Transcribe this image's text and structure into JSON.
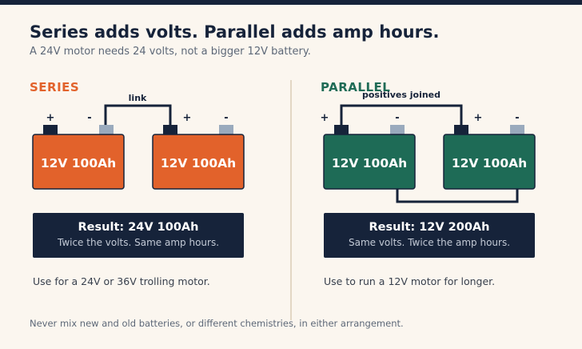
{
  "header": {
    "title": "Series adds volts. Parallel adds amp hours.",
    "subtitle": "A 24V motor needs 24 volts, not a bigger 12V battery."
  },
  "colors": {
    "series_accent": "#e2622b",
    "parallel_accent": "#1e6b56",
    "dark": "#16233a",
    "negative_terminal": "#9aaabd"
  },
  "series": {
    "label": "SERIES",
    "wire_label": "link",
    "battery_1": {
      "label": "12V 100Ah",
      "plus": "+",
      "minus": "-"
    },
    "battery_2": {
      "label": "12V 100Ah",
      "plus": "+",
      "minus": "-"
    },
    "result_title": "Result: 24V 100Ah",
    "result_sub": "Twice the volts. Same amp hours.",
    "use": "Use for a 24V or 36V trolling motor."
  },
  "parallel": {
    "label": "PARALLEL",
    "wire_label": "positives joined",
    "battery_1": {
      "label": "12V 100Ah",
      "plus": "+",
      "minus": "-"
    },
    "battery_2": {
      "label": "12V 100Ah",
      "plus": "+",
      "minus": "-"
    },
    "result_title": "Result: 12V 200Ah",
    "result_sub": "Same volts. Twice the amp hours.",
    "use": "Use to run a 12V motor for longer."
  },
  "footer": "Never mix new and old batteries, or different chemistries, in either arrangement."
}
